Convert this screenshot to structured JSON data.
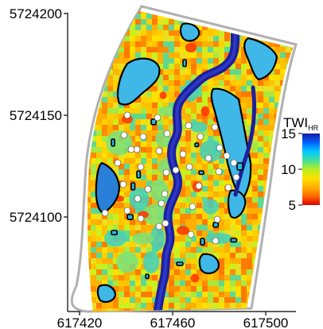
{
  "map": {
    "x_axis": {
      "ticks": [
        {
          "value": 617420,
          "label": "617420"
        },
        {
          "value": 617460,
          "label": "617460"
        },
        {
          "value": 617500,
          "label": "617500"
        }
      ]
    },
    "y_axis": {
      "ticks": [
        {
          "value": 5724200,
          "label": "5724200"
        },
        {
          "value": 5724150,
          "label": "5724150"
        },
        {
          "value": 5724100,
          "label": "5724100"
        }
      ]
    },
    "colorbar": {
      "title_main": "TWI",
      "title_sub": "HR",
      "range": [
        5,
        15
      ],
      "ticks": [
        {
          "value": 15,
          "label": "15"
        },
        {
          "value": 10,
          "label": "10"
        },
        {
          "value": 5,
          "label": "5"
        }
      ],
      "colors": [
        "#e00000",
        "#ff6a00",
        "#ffb000",
        "#ffe000",
        "#b8ee20",
        "#40e0a0",
        "#00c8ff",
        "#0060ff",
        "#1a1aa0"
      ]
    },
    "legend_colors": {
      "boundary": "#b0b0b0",
      "channel": "#1f1f9a",
      "wet_zone": "#3fb8e8",
      "sample_point": "#ffffff"
    }
  }
}
